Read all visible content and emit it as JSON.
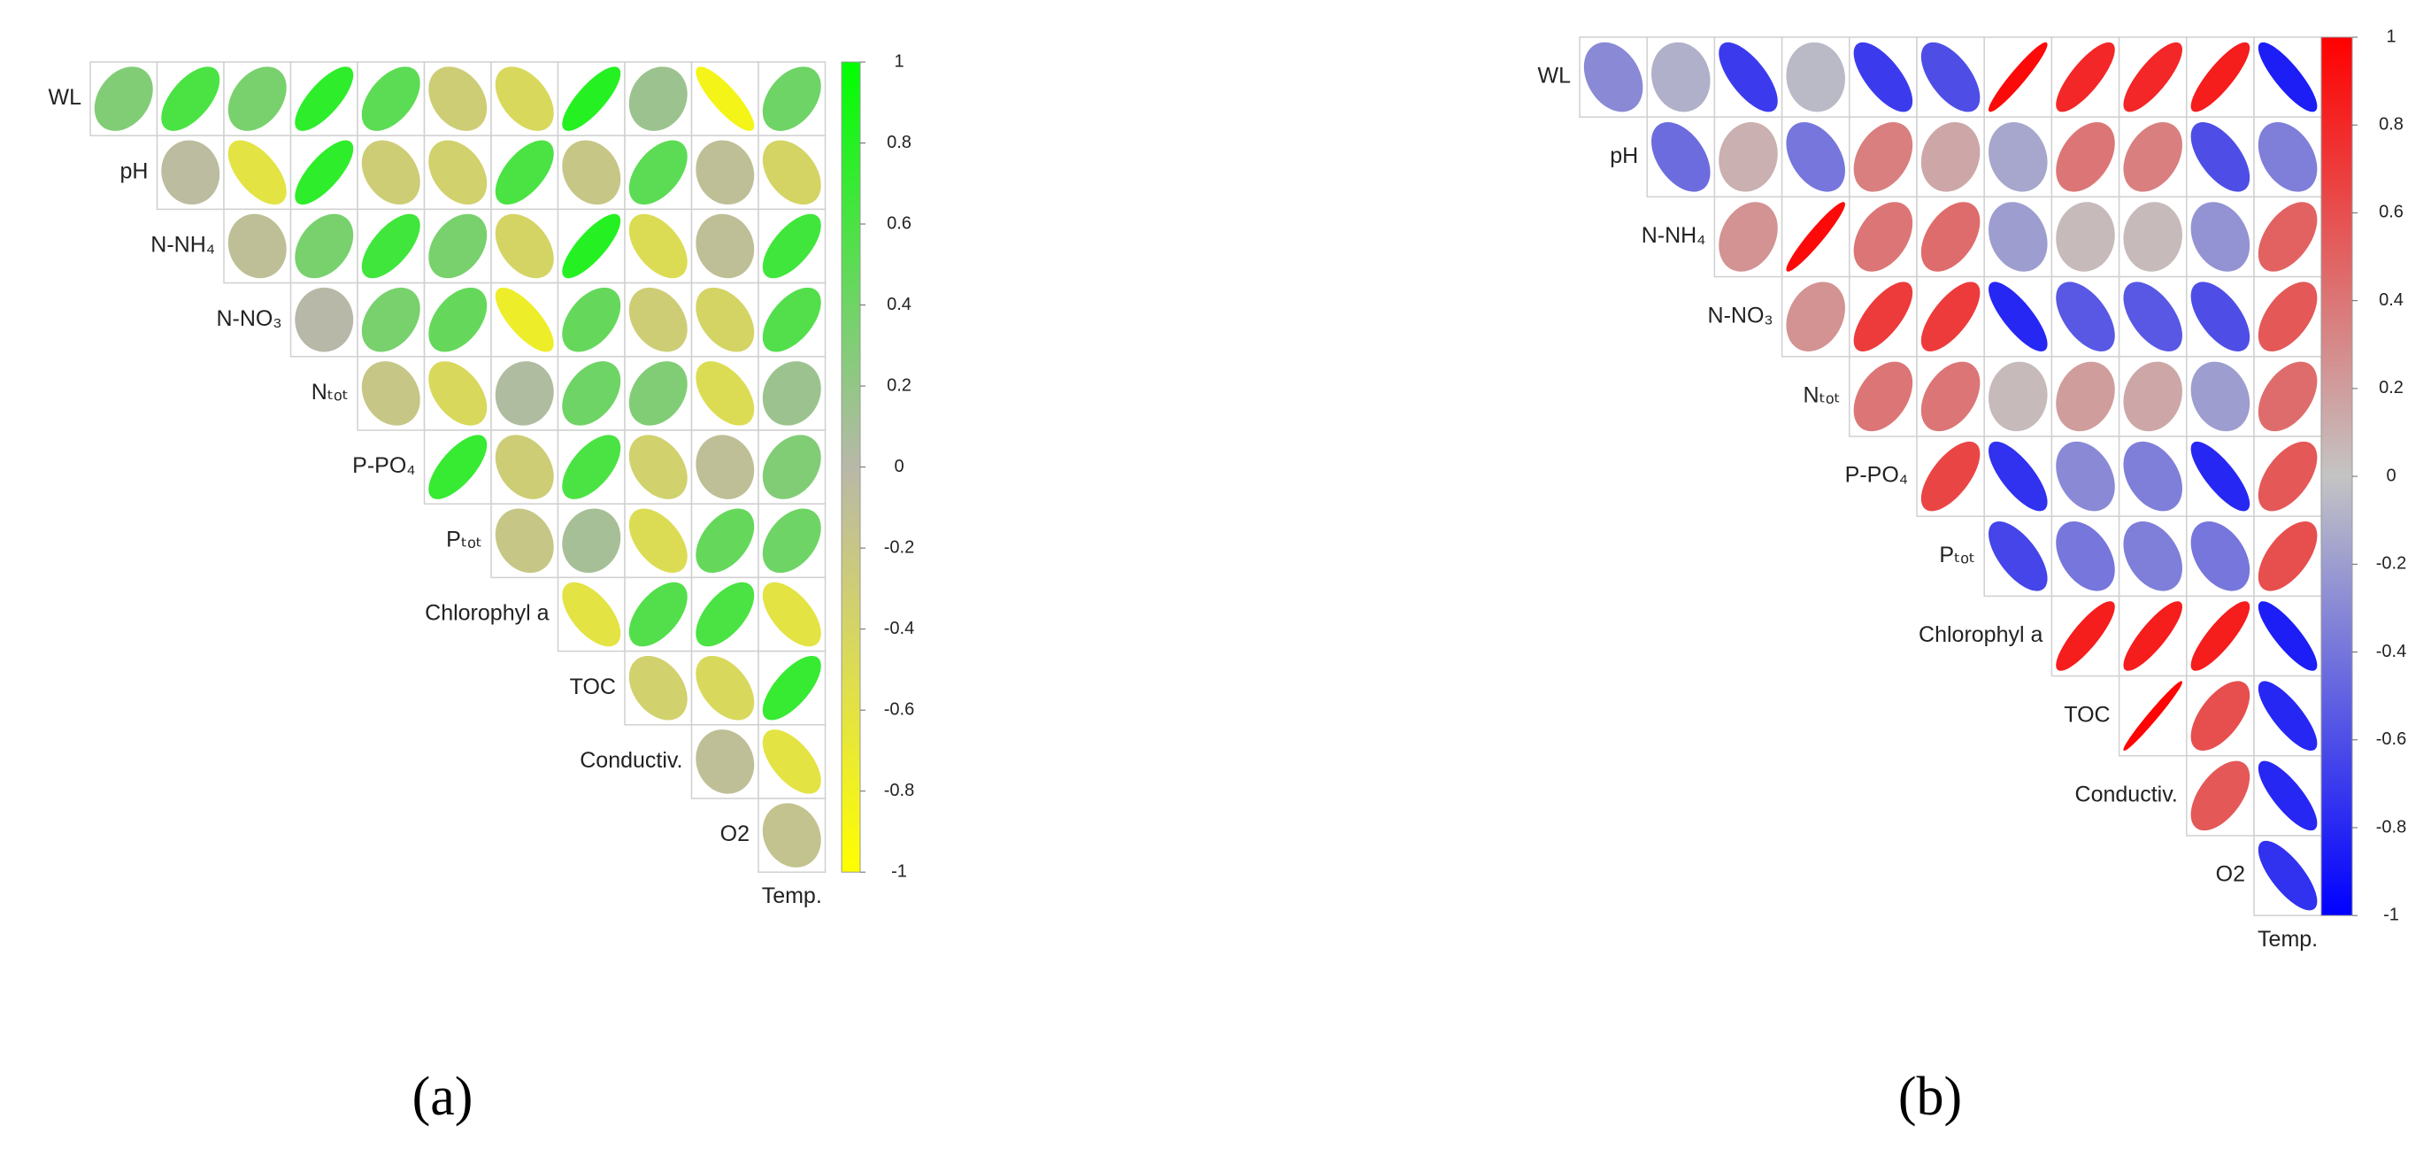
{
  "chart_data": [
    {
      "type": "correlogram",
      "caption": "(a)",
      "row_labels": [
        "WL",
        "pH",
        "N-NH₄",
        "N-NO₃",
        "Nₜₒₜ",
        "P-PO₄",
        "Pₜₒₜ",
        "Chlorophyl a",
        "TOC",
        "Conductiv.",
        "O2"
      ],
      "col_labels": [
        null,
        null,
        null,
        null,
        null,
        null,
        null,
        null,
        null,
        null,
        "Temp."
      ],
      "values": [
        [
          0.3,
          0.6,
          0.35,
          0.75,
          0.5,
          -0.3,
          -0.45,
          0.8,
          0.15,
          -0.85,
          0.4
        ],
        [
          null,
          -0.05,
          -0.6,
          0.75,
          -0.3,
          -0.35,
          0.6,
          -0.2,
          0.5,
          -0.1,
          -0.4
        ],
        [
          null,
          null,
          -0.1,
          0.35,
          0.65,
          0.35,
          -0.4,
          0.8,
          -0.5,
          -0.1,
          0.65
        ],
        [
          null,
          null,
          null,
          0.0,
          0.35,
          0.45,
          -0.75,
          0.45,
          -0.3,
          -0.4,
          0.55
        ],
        [
          null,
          null,
          null,
          null,
          -0.2,
          -0.45,
          0.05,
          0.4,
          0.3,
          -0.5,
          0.15
        ],
        [
          null,
          null,
          null,
          null,
          null,
          0.7,
          -0.3,
          0.6,
          -0.35,
          -0.1,
          0.3
        ],
        [
          null,
          null,
          null,
          null,
          null,
          null,
          -0.2,
          0.1,
          -0.5,
          0.45,
          0.4
        ],
        [
          null,
          null,
          null,
          null,
          null,
          null,
          null,
          -0.6,
          0.55,
          0.6,
          -0.6
        ],
        [
          null,
          null,
          null,
          null,
          null,
          null,
          null,
          null,
          -0.35,
          -0.45,
          0.7
        ],
        [
          null,
          null,
          null,
          null,
          null,
          null,
          null,
          null,
          null,
          -0.1,
          -0.6
        ],
        [
          null,
          null,
          null,
          null,
          null,
          null,
          null,
          null,
          null,
          null,
          -0.15
        ]
      ],
      "colors": {
        "low": "#ffff00",
        "mid": "#b8b8a8",
        "high": "#00ff00"
      },
      "clim": [
        -1,
        1
      ],
      "cticks": [
        -1,
        -0.8,
        -0.6,
        -0.4,
        -0.2,
        0,
        0.2,
        0.4,
        0.6,
        0.8,
        1
      ]
    },
    {
      "type": "correlogram",
      "caption": "(b)",
      "row_labels": [
        "WL",
        "pH",
        "N-NH₄",
        "N-NO₃",
        "Nₜₒₜ",
        "P-PO₄",
        "Pₜₒₜ",
        "Chlorophyl a",
        "TOC",
        "Conductiv.",
        "O2"
      ],
      "col_labels": [
        null,
        null,
        null,
        null,
        null,
        null,
        null,
        null,
        null,
        null,
        "Temp."
      ],
      "values": [
        [
          -0.3,
          -0.1,
          -0.7,
          -0.05,
          -0.7,
          -0.6,
          0.95,
          0.8,
          0.8,
          0.85,
          -0.85
        ],
        [
          null,
          -0.45,
          0.1,
          -0.4,
          0.35,
          0.15,
          -0.15,
          0.4,
          0.35,
          -0.6,
          -0.35
        ],
        [
          null,
          null,
          0.25,
          0.95,
          0.4,
          0.45,
          -0.2,
          0.05,
          0.05,
          -0.25,
          0.5
        ],
        [
          null,
          null,
          null,
          0.25,
          0.7,
          0.7,
          -0.8,
          -0.55,
          -0.55,
          -0.6,
          0.55
        ],
        [
          null,
          null,
          null,
          null,
          0.4,
          0.4,
          0.05,
          0.2,
          0.15,
          -0.2,
          0.45
        ],
        [
          null,
          null,
          null,
          null,
          null,
          0.65,
          -0.75,
          -0.3,
          -0.35,
          -0.8,
          0.55
        ],
        [
          null,
          null,
          null,
          null,
          null,
          null,
          -0.65,
          -0.4,
          -0.35,
          -0.4,
          0.6
        ],
        [
          null,
          null,
          null,
          null,
          null,
          null,
          null,
          0.85,
          0.85,
          0.85,
          -0.85
        ],
        [
          null,
          null,
          null,
          null,
          null,
          null,
          null,
          null,
          0.98,
          0.6,
          -0.8
        ],
        [
          null,
          null,
          null,
          null,
          null,
          null,
          null,
          null,
          null,
          0.55,
          -0.8
        ],
        [
          null,
          null,
          null,
          null,
          null,
          null,
          null,
          null,
          null,
          null,
          -0.75
        ]
      ],
      "colors": {
        "low": "#0000ff",
        "mid": "#c4c4c4",
        "high": "#ff0000"
      },
      "clim": [
        -1,
        1
      ],
      "cticks": [
        -1,
        -0.8,
        -0.6,
        -0.4,
        -0.2,
        0,
        0.2,
        0.4,
        0.6,
        0.8,
        1
      ]
    }
  ]
}
